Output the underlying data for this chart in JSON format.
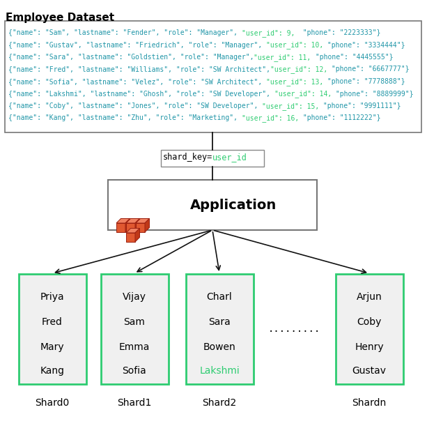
{
  "title": "Employee Dataset",
  "dataset_lines": [
    [
      {
        "text": "{\"name\": \"Sam\", \"lastname\": \"Fender\", \"role\": \"Manager\", ",
        "color": "#2196a8"
      },
      {
        "text": "\"user_id\": 9,",
        "color": "#2ecc71"
      },
      {
        "text": "  \"phone\": \"2223333\"}",
        "color": "#2196a8"
      }
    ],
    [
      {
        "text": "{\"name\": \"Gustav\", \"lastname\": \"Friedrich\", \"role\": \"Manager\", ",
        "color": "#2196a8"
      },
      {
        "text": "\"user_id\": 10,",
        "color": "#2ecc71"
      },
      {
        "text": " \"phone\": \"3334444\"}",
        "color": "#2196a8"
      }
    ],
    [
      {
        "text": "{\"name\": \"Sara\", \"lastname\": \"Goldstien\", \"role\": \"Manager\",",
        "color": "#2196a8"
      },
      {
        "text": "\"user_id\": 11,",
        "color": "#2ecc71"
      },
      {
        "text": " \"phone\": \"4445555\"}",
        "color": "#2196a8"
      }
    ],
    [
      {
        "text": "{\"name\": \"Fred\", \"lastname\": \"Williams\", \"role\": \"SW Architect\",",
        "color": "#2196a8"
      },
      {
        "text": "\"user_id\": 12,",
        "color": "#2ecc71"
      },
      {
        "text": " \"phone\": \"6667777\"}",
        "color": "#2196a8"
      }
    ],
    [
      {
        "text": "{\"name\": \"Sofia\", \"lastname\": \"Velez\", \"role\": \"SW Architect\", ",
        "color": "#2196a8"
      },
      {
        "text": "\"user_id\": 13,",
        "color": "#2ecc71"
      },
      {
        "text": " \"phone\": \"7778888\"}",
        "color": "#2196a8"
      }
    ],
    [
      {
        "text": "{\"name\": \"Lakshmi\", \"lastname\": \"Ghosh\", \"role\": \"SW Developer\", ",
        "color": "#2196a8"
      },
      {
        "text": "\"user_id\": 14,",
        "color": "#2ecc71"
      },
      {
        "text": " \"phone\": \"8889999\"}",
        "color": "#2196a8"
      }
    ],
    [
      {
        "text": "{\"name\": \"Coby\", \"lastname\": \"Jones\", \"role\": \"SW Developer\", ",
        "color": "#2196a8"
      },
      {
        "text": "\"user_id\": 15,",
        "color": "#2ecc71"
      },
      {
        "text": " \"phone\": \"9991111\"}",
        "color": "#2196a8"
      }
    ],
    [
      {
        "text": "{\"name\": \"Kang\", \"lastname\": \"Zhu\", \"role\": \"Marketing\", ",
        "color": "#2196a8"
      },
      {
        "text": "\"user_id\": 16,",
        "color": "#2ecc71"
      },
      {
        "text": " \"phone\": \"1112222\"}",
        "color": "#2196a8"
      }
    ]
  ],
  "shard_key_label": "shard_key=",
  "shard_key_value": "user_id",
  "app_label": "Application",
  "shards": [
    {
      "label": "Shard0",
      "names": [
        "Priya",
        "Fred",
        "Mary",
        "Kang"
      ],
      "name_colors": [
        "black",
        "black",
        "black",
        "black"
      ]
    },
    {
      "label": "Shard1",
      "names": [
        "Vijay",
        "Sam",
        "Emma",
        "Sofia"
      ],
      "name_colors": [
        "black",
        "black",
        "black",
        "black"
      ]
    },
    {
      "label": "Shard2",
      "names": [
        "Charl",
        "Sara",
        "Bowen",
        "Lakshmi"
      ],
      "name_colors": [
        "black",
        "black",
        "black",
        "#2ecc71"
      ]
    },
    {
      "label": "Shardn",
      "names": [
        "Arjun",
        "Coby",
        "Henry",
        "Gustav"
      ],
      "name_colors": [
        "black",
        "black",
        "black",
        "black"
      ]
    }
  ],
  "dots_label": ".........",
  "shard_border_color": "#2ecc71",
  "shard_fill_color": "#f0f0f0",
  "app_border_color": "#777777",
  "dataset_border_color": "#777777",
  "bg_color": "#ffffff",
  "arrow_color": "#111111",
  "title_fontsize": 11,
  "dataset_fontsize": 7.0,
  "sk_fontsize": 8.5,
  "app_fontsize": 14,
  "shard_name_fontsize": 10,
  "shard_label_fontsize": 10
}
